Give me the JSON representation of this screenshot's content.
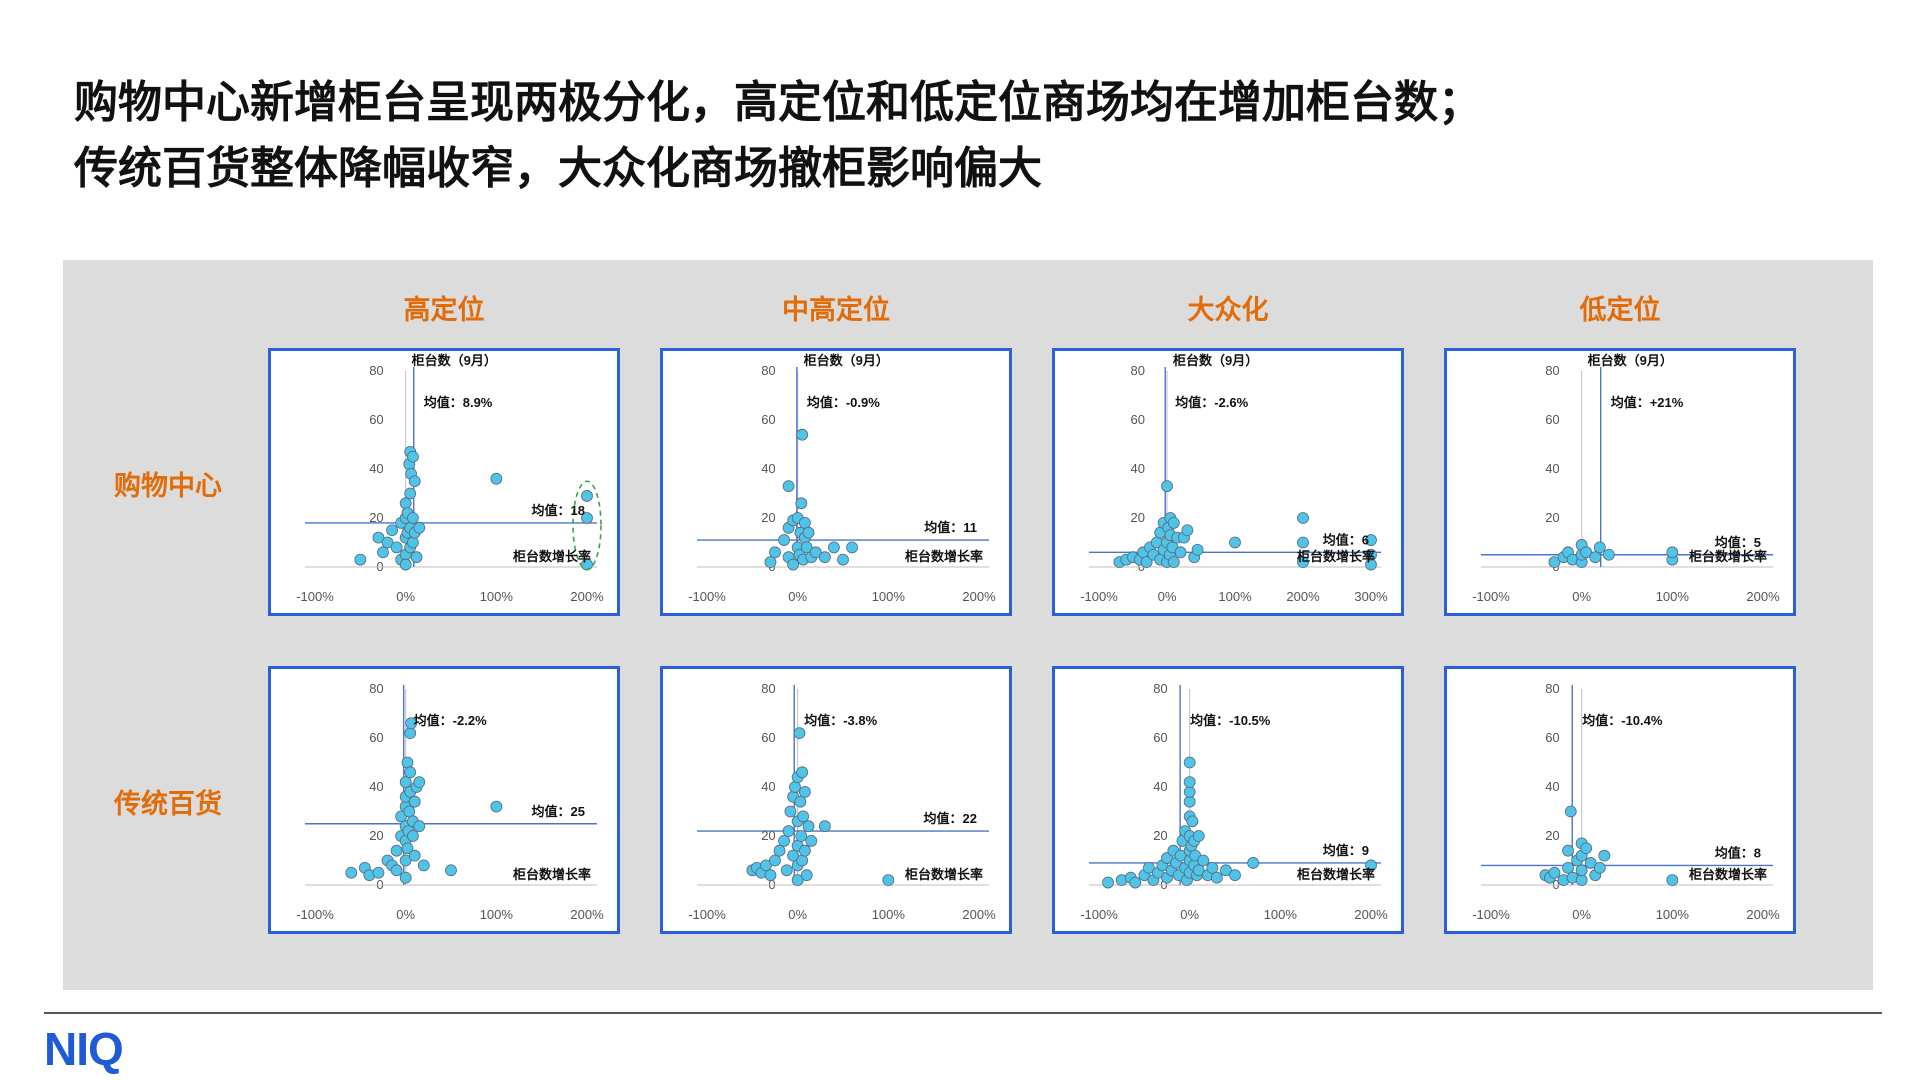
{
  "title": {
    "line1": "购物中心新增柜台呈现两极分化，高定位和低定位商场均在增加柜台数；",
    "line2": "传统百货整体降幅收窄，大众化商场撤柜影响偏大"
  },
  "columns": [
    "高定位",
    "中高定位",
    "大众化",
    "低定位"
  ],
  "rows": [
    "购物中心",
    "传统百货"
  ],
  "logo": "NIQ",
  "colors": {
    "accent": "#e36c0a",
    "frame": "#2b5fe0",
    "point": "#4fc3e8",
    "point_edge": "#5a6a7a",
    "mean_line": "#4a74d0",
    "panel_bg": "#dcdcdc",
    "highlight": "#3aa64a"
  },
  "chart_data": [
    {
      "type": "scatter",
      "row": "购物中心",
      "column": "高定位",
      "ylabel": "柜台数（9月）",
      "xlabel": "柜台数增长率",
      "ylim": [
        0,
        80
      ],
      "yticks": [
        "0",
        "20",
        "40",
        "60",
        "80"
      ],
      "xlim": [
        -100,
        200
      ],
      "xticks": [
        "-100%",
        "0%",
        "100%",
        "200%"
      ],
      "mean_x_label": "均值：8.9%",
      "mean_x": 8.9,
      "mean_y_label": "均值：18",
      "mean_y": 18,
      "highlight": {
        "x": 200,
        "y": 17,
        "rx": 14,
        "ry": 18
      },
      "points": [
        [
          -50,
          3
        ],
        [
          -30,
          12
        ],
        [
          -25,
          6
        ],
        [
          -20,
          10
        ],
        [
          -15,
          15
        ],
        [
          -10,
          8
        ],
        [
          -5,
          18
        ],
        [
          -5,
          3
        ],
        [
          0,
          5
        ],
        [
          0,
          12
        ],
        [
          0,
          20
        ],
        [
          0,
          26
        ],
        [
          0,
          1
        ],
        [
          2,
          14
        ],
        [
          2,
          22
        ],
        [
          4,
          42
        ],
        [
          5,
          8
        ],
        [
          5,
          16
        ],
        [
          5,
          30
        ],
        [
          5,
          47
        ],
        [
          6,
          38
        ],
        [
          8,
          10
        ],
        [
          8,
          20
        ],
        [
          8,
          45
        ],
        [
          10,
          14
        ],
        [
          10,
          35
        ],
        [
          12,
          4
        ],
        [
          15,
          16
        ],
        [
          100,
          36
        ],
        [
          200,
          1
        ],
        [
          200,
          20
        ],
        [
          200,
          29
        ]
      ]
    },
    {
      "type": "scatter",
      "row": "购物中心",
      "column": "中高定位",
      "ylabel": "柜台数（9月）",
      "xlabel": "柜台数增长率",
      "ylim": [
        0,
        80
      ],
      "yticks": [
        "0",
        "20",
        "40",
        "60",
        "80"
      ],
      "xlim": [
        -100,
        200
      ],
      "xticks": [
        "-100%",
        "0%",
        "100%",
        "200%"
      ],
      "mean_x_label": "均值：-0.9%",
      "mean_x": -0.9,
      "mean_y_label": "均值：11",
      "mean_y": 11,
      "points": [
        [
          -30,
          2
        ],
        [
          -25,
          6
        ],
        [
          -15,
          11
        ],
        [
          -10,
          4
        ],
        [
          -10,
          16
        ],
        [
          -5,
          19
        ],
        [
          -5,
          1
        ],
        [
          0,
          8
        ],
        [
          0,
          20
        ],
        [
          2,
          5
        ],
        [
          3,
          14
        ],
        [
          4,
          26
        ],
        [
          5,
          54
        ],
        [
          6,
          3
        ],
        [
          8,
          12
        ],
        [
          8,
          18
        ],
        [
          10,
          8
        ],
        [
          12,
          14
        ],
        [
          15,
          4
        ],
        [
          20,
          6
        ],
        [
          30,
          4
        ],
        [
          40,
          8
        ],
        [
          50,
          3
        ],
        [
          60,
          8
        ],
        [
          -10,
          33
        ]
      ]
    },
    {
      "type": "scatter",
      "row": "购物中心",
      "column": "大众化",
      "ylabel": "柜台数（9月）",
      "xlabel": "柜台数增长率",
      "ylim": [
        0,
        80
      ],
      "yticks": [
        "0",
        "20",
        "40",
        "60",
        "80"
      ],
      "xlim": [
        -100,
        300
      ],
      "xticks": [
        "-100%",
        "0%",
        "100%",
        "200%",
        "300%"
      ],
      "mean_x_label": "均值：-2.6%",
      "mean_x": -2.6,
      "mean_y_label": "均值：6",
      "mean_y": 6,
      "points": [
        [
          -70,
          2
        ],
        [
          -60,
          3
        ],
        [
          -50,
          4
        ],
        [
          -40,
          3
        ],
        [
          -35,
          6
        ],
        [
          -30,
          2
        ],
        [
          -25,
          8
        ],
        [
          -20,
          5
        ],
        [
          -15,
          10
        ],
        [
          -10,
          3
        ],
        [
          -10,
          14
        ],
        [
          -5,
          7
        ],
        [
          -5,
          18
        ],
        [
          0,
          2
        ],
        [
          0,
          10
        ],
        [
          0,
          33
        ],
        [
          2,
          16
        ],
        [
          4,
          5
        ],
        [
          5,
          13
        ],
        [
          5,
          20
        ],
        [
          8,
          8
        ],
        [
          10,
          2
        ],
        [
          10,
          18
        ],
        [
          15,
          12
        ],
        [
          20,
          6
        ],
        [
          25,
          12
        ],
        [
          30,
          15
        ],
        [
          40,
          4
        ],
        [
          45,
          7
        ],
        [
          100,
          10
        ],
        [
          200,
          2
        ],
        [
          200,
          10
        ],
        [
          200,
          20
        ],
        [
          300,
          1
        ],
        [
          300,
          5
        ],
        [
          300,
          11
        ]
      ]
    },
    {
      "type": "scatter",
      "row": "购物中心",
      "column": "低定位",
      "ylabel": "柜台数（9月）",
      "xlabel": "柜台数增长率",
      "ylim": [
        0,
        80
      ],
      "yticks": [
        "0",
        "20",
        "40",
        "60",
        "80"
      ],
      "xlim": [
        -100,
        200
      ],
      "xticks": [
        "-100%",
        "0%",
        "100%",
        "200%"
      ],
      "mean_x_label": "均值：+21%",
      "mean_x": 21,
      "mean_y_label": "均值：5",
      "mean_y": 5,
      "points": [
        [
          -30,
          2
        ],
        [
          -20,
          4
        ],
        [
          -15,
          6
        ],
        [
          -10,
          3
        ],
        [
          0,
          2
        ],
        [
          0,
          5
        ],
        [
          0,
          9
        ],
        [
          5,
          6
        ],
        [
          15,
          4
        ],
        [
          20,
          8
        ],
        [
          30,
          5
        ],
        [
          100,
          3
        ],
        [
          100,
          6
        ]
      ]
    },
    {
      "type": "scatter",
      "row": "传统百货",
      "column": "高定位",
      "ylabel": "",
      "xlabel": "柜台数增长率",
      "ylim": [
        0,
        80
      ],
      "yticks": [
        "0",
        "20",
        "40",
        "60",
        "80"
      ],
      "xlim": [
        -100,
        200
      ],
      "xticks": [
        "-100%",
        "0%",
        "100%",
        "200%"
      ],
      "mean_x_label": "均值：-2.2%",
      "mean_x": -2.2,
      "mean_y_label": "均值：25",
      "mean_y": 25,
      "points": [
        [
          -60,
          5
        ],
        [
          -45,
          7
        ],
        [
          -40,
          4
        ],
        [
          -30,
          5
        ],
        [
          -20,
          10
        ],
        [
          -15,
          8
        ],
        [
          -10,
          6
        ],
        [
          -10,
          14
        ],
        [
          -5,
          20
        ],
        [
          -5,
          28
        ],
        [
          0,
          3
        ],
        [
          0,
          10
        ],
        [
          0,
          18
        ],
        [
          0,
          24
        ],
        [
          0,
          32
        ],
        [
          0,
          36
        ],
        [
          0,
          42
        ],
        [
          2,
          50
        ],
        [
          2,
          15
        ],
        [
          3,
          22
        ],
        [
          4,
          30
        ],
        [
          5,
          38
        ],
        [
          5,
          46
        ],
        [
          5,
          62
        ],
        [
          6,
          66
        ],
        [
          8,
          20
        ],
        [
          8,
          26
        ],
        [
          10,
          12
        ],
        [
          10,
          34
        ],
        [
          12,
          40
        ],
        [
          15,
          42
        ],
        [
          15,
          24
        ],
        [
          20,
          8
        ],
        [
          50,
          6
        ],
        [
          100,
          32
        ]
      ]
    },
    {
      "type": "scatter",
      "row": "传统百货",
      "column": "中高定位",
      "ylabel": "",
      "xlabel": "柜台数增长率",
      "ylim": [
        0,
        80
      ],
      "yticks": [
        "0",
        "20",
        "40",
        "60",
        "80"
      ],
      "xlim": [
        -100,
        200
      ],
      "xticks": [
        "-100%",
        "0%",
        "100%",
        "200%"
      ],
      "mean_x_label": "均值：-3.8%",
      "mean_x": -3.8,
      "mean_y_label": "均值：22",
      "mean_y": 22,
      "points": [
        [
          -50,
          6
        ],
        [
          -45,
          7
        ],
        [
          -40,
          5
        ],
        [
          -35,
          8
        ],
        [
          -30,
          4
        ],
        [
          -25,
          10
        ],
        [
          -20,
          14
        ],
        [
          -15,
          18
        ],
        [
          -12,
          6
        ],
        [
          -10,
          22
        ],
        [
          -8,
          30
        ],
        [
          -5,
          36
        ],
        [
          -5,
          12
        ],
        [
          -3,
          40
        ],
        [
          0,
          2
        ],
        [
          0,
          8
        ],
        [
          0,
          16
        ],
        [
          0,
          26
        ],
        [
          0,
          44
        ],
        [
          2,
          62
        ],
        [
          3,
          34
        ],
        [
          4,
          20
        ],
        [
          5,
          46
        ],
        [
          5,
          10
        ],
        [
          6,
          28
        ],
        [
          8,
          14
        ],
        [
          8,
          38
        ],
        [
          10,
          4
        ],
        [
          12,
          24
        ],
        [
          15,
          18
        ],
        [
          30,
          24
        ],
        [
          100,
          2
        ]
      ]
    },
    {
      "type": "scatter",
      "row": "传统百货",
      "column": "大众化",
      "ylabel": "",
      "xlabel": "柜台数增长率",
      "ylim": [
        0,
        80
      ],
      "yticks": [
        "0",
        "20",
        "40",
        "60",
        "80"
      ],
      "xlim": [
        -100,
        200
      ],
      "xticks": [
        "-100%",
        "0%",
        "100%",
        "200%"
      ],
      "mean_x_label": "均值：-10.5%",
      "mean_x": -10.5,
      "mean_y_label": "均值：9",
      "mean_y": 9,
      "points": [
        [
          -90,
          1
        ],
        [
          -75,
          2
        ],
        [
          -65,
          3
        ],
        [
          -60,
          1
        ],
        [
          -50,
          4
        ],
        [
          -45,
          7
        ],
        [
          -40,
          2
        ],
        [
          -35,
          5
        ],
        [
          -30,
          8
        ],
        [
          -25,
          3
        ],
        [
          -25,
          11
        ],
        [
          -20,
          6
        ],
        [
          -18,
          14
        ],
        [
          -15,
          9
        ],
        [
          -12,
          4
        ],
        [
          -10,
          12
        ],
        [
          -8,
          18
        ],
        [
          -5,
          7
        ],
        [
          -5,
          22
        ],
        [
          -3,
          2
        ],
        [
          0,
          5
        ],
        [
          0,
          10
        ],
        [
          0,
          14
        ],
        [
          0,
          20
        ],
        [
          0,
          28
        ],
        [
          0,
          34
        ],
        [
          0,
          38
        ],
        [
          0,
          42
        ],
        [
          0,
          50
        ],
        [
          2,
          16
        ],
        [
          3,
          26
        ],
        [
          5,
          8
        ],
        [
          5,
          18
        ],
        [
          6,
          12
        ],
        [
          8,
          4
        ],
        [
          10,
          20
        ],
        [
          10,
          6
        ],
        [
          15,
          10
        ],
        [
          20,
          4
        ],
        [
          25,
          7
        ],
        [
          30,
          3
        ],
        [
          40,
          6
        ],
        [
          50,
          4
        ],
        [
          70,
          9
        ],
        [
          200,
          8
        ]
      ]
    },
    {
      "type": "scatter",
      "row": "传统百货",
      "column": "低定位",
      "ylabel": "",
      "xlabel": "柜台数增长率",
      "ylim": [
        0,
        80
      ],
      "yticks": [
        "0",
        "20",
        "40",
        "60",
        "80"
      ],
      "xlim": [
        -100,
        200
      ],
      "xticks": [
        "-100%",
        "0%",
        "100%",
        "200%"
      ],
      "mean_x_label": "均值：-10.4%",
      "mean_x": -10.4,
      "mean_y_label": "均值：8",
      "mean_y": 8,
      "points": [
        [
          -40,
          4
        ],
        [
          -35,
          3
        ],
        [
          -30,
          5
        ],
        [
          -20,
          2
        ],
        [
          -15,
          7
        ],
        [
          -15,
          14
        ],
        [
          -12,
          30
        ],
        [
          -10,
          3
        ],
        [
          -5,
          10
        ],
        [
          0,
          2
        ],
        [
          0,
          6
        ],
        [
          0,
          12
        ],
        [
          0,
          17
        ],
        [
          5,
          15
        ],
        [
          10,
          9
        ],
        [
          15,
          4
        ],
        [
          20,
          7
        ],
        [
          25,
          12
        ],
        [
          100,
          2
        ]
      ]
    }
  ]
}
